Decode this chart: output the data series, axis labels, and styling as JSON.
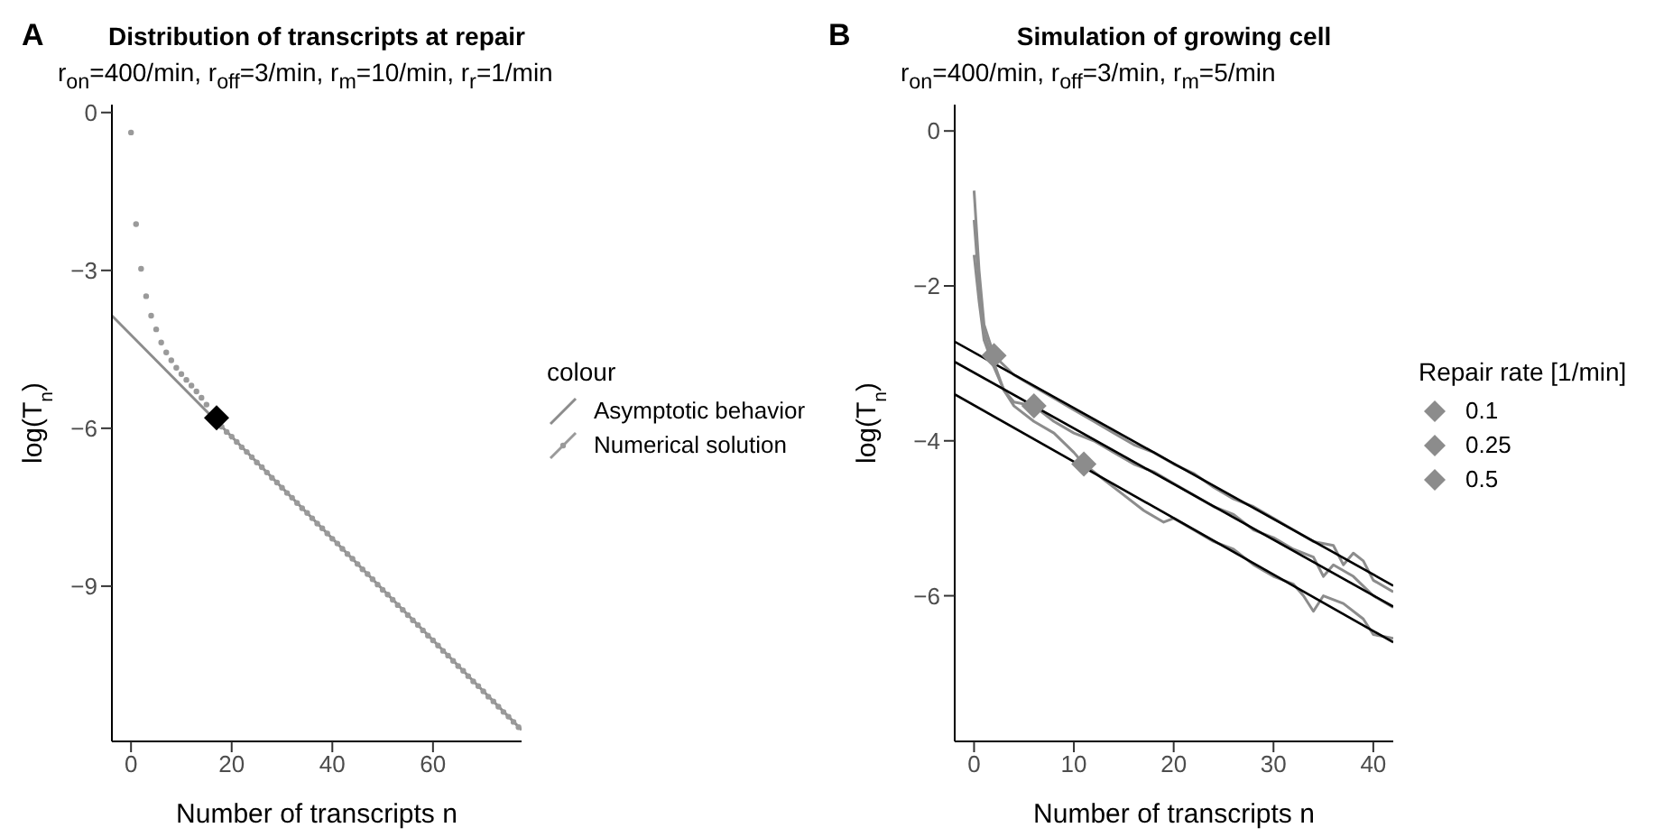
{
  "chart_data": [
    {
      "type": "scatter",
      "title": "Distribution of transcripts at repair",
      "subtitle": "r$_{on}$=400/min,  r$_{off}$=3/min,  r$_{m}$=10/min,  r$_{r}$=1/min",
      "xlabel": "Number of transcripts n",
      "ylabel": "log(T$_{n}$)",
      "legend_title": "colour",
      "legend": "right",
      "annotations": [
        "A"
      ],
      "xlim": [
        -3.8,
        77.6
      ],
      "xticks": [
        0,
        20,
        40,
        60
      ],
      "ylim": [
        -11.95,
        0.15
      ],
      "yticks": [
        0,
        -3,
        -6,
        -9
      ],
      "series": [
        {
          "name": "Asymptotic behavior",
          "type": "line",
          "color": "#8c8c8c",
          "x": [
            -3.8,
            77.6
          ],
          "values": [
            -3.86,
            -11.73
          ]
        },
        {
          "name": "Numerical solution",
          "marker": "circle",
          "color": "#9a9a9a",
          "x": [
            0,
            1,
            2,
            3,
            4,
            5,
            6,
            7,
            8,
            9,
            10,
            11,
            12,
            13,
            14,
            15,
            16,
            17,
            18,
            19,
            20,
            21,
            22,
            23,
            24,
            25,
            26,
            27,
            28,
            29,
            30,
            31,
            32,
            33,
            34,
            35,
            36,
            37,
            38,
            39,
            40,
            41,
            42,
            43,
            44,
            45,
            46,
            47,
            48,
            49,
            50,
            51,
            52,
            53,
            54,
            55,
            56,
            57,
            58,
            59,
            60,
            61,
            62,
            63,
            64,
            65,
            66,
            67,
            68,
            69,
            70,
            71,
            72,
            73,
            74,
            75,
            76,
            77
          ],
          "values": [
            -0.38,
            -2.12,
            -2.97,
            -3.49,
            -3.86,
            -4.12,
            -4.37,
            -4.56,
            -4.71,
            -4.85,
            -4.97,
            -5.08,
            -5.19,
            -5.3,
            -5.42,
            -5.55,
            null,
            null,
            -5.97,
            -6.07,
            -6.16,
            -6.26,
            -6.36,
            -6.45,
            -6.55,
            -6.65,
            -6.74,
            -6.84,
            -6.94,
            -7.03,
            -7.13,
            -7.23,
            -7.32,
            -7.42,
            -7.52,
            -7.61,
            -7.71,
            -7.81,
            -7.9,
            -8.0,
            -8.1,
            -8.19,
            -8.29,
            -8.39,
            -8.48,
            -8.58,
            -8.68,
            -8.77,
            -8.87,
            -8.97,
            -9.07,
            -9.16,
            -9.26,
            -9.36,
            -9.45,
            -9.55,
            -9.65,
            -9.74,
            -9.84,
            -9.94,
            -10.03,
            -10.13,
            -10.23,
            -10.32,
            -10.42,
            -10.52,
            -10.61,
            -10.71,
            -10.81,
            -10.9,
            -11.0,
            -11.1,
            -11.19,
            -11.29,
            -11.39,
            -11.48,
            -11.58,
            -11.68
          ]
        },
        {
          "marker": "diamond",
          "color": "#000000",
          "x": [
            17
          ],
          "values": [
            -5.8
          ]
        }
      ]
    },
    {
      "type": "line",
      "title": "Simulation of growing cell",
      "subtitle": "r$_{on}$=400/min,  r$_{off}$=3/min,  r$_{m}$=5/min",
      "xlabel": "Number of transcripts n",
      "ylabel": "log(T$_{n}$)",
      "legend_title": "Repair rate [1/min]",
      "legend": "right",
      "annotations": [
        "B"
      ],
      "xlim": [
        -1.94,
        42
      ],
      "xticks": [
        0,
        10,
        20,
        30,
        40
      ],
      "ylim": [
        -7.88,
        0.34
      ],
      "yticks": [
        0,
        -2,
        -4,
        -6
      ],
      "series": [
        {
          "color": "#8c8c8c",
          "x": [
            0,
            0.5,
            1,
            2,
            4,
            6,
            8,
            10,
            12,
            14,
            16,
            18,
            20,
            22,
            24,
            26,
            28,
            30,
            32,
            34,
            36,
            37,
            38,
            39,
            40,
            42
          ],
          "values": [
            -0.77,
            -1.8,
            -2.5,
            -2.9,
            -3.15,
            -3.3,
            -3.45,
            -3.6,
            -3.75,
            -3.9,
            -4.05,
            -4.15,
            -4.3,
            -4.42,
            -4.6,
            -4.75,
            -4.85,
            -5.0,
            -5.15,
            -5.3,
            -5.35,
            -5.6,
            -5.45,
            -5.55,
            -5.8,
            -5.95
          ]
        },
        {
          "color": "#8c8c8c",
          "x": [
            0,
            0.5,
            1,
            2,
            3,
            4,
            6,
            8,
            10,
            12,
            14,
            16,
            18,
            20,
            22,
            24,
            26,
            28,
            30,
            32,
            34,
            35,
            36,
            38,
            40,
            42
          ],
          "values": [
            -1.15,
            -2.0,
            -2.6,
            -3.0,
            -3.35,
            -3.5,
            -3.55,
            -3.75,
            -3.9,
            -4.0,
            -4.15,
            -4.3,
            -4.4,
            -4.55,
            -4.7,
            -4.85,
            -4.95,
            -5.15,
            -5.25,
            -5.4,
            -5.5,
            -5.75,
            -5.6,
            -5.75,
            -6.0,
            -6.15
          ]
        },
        {
          "color": "#8c8c8c",
          "x": [
            0,
            0.5,
            1,
            2,
            3,
            4,
            6,
            8,
            10,
            11,
            13,
            15,
            17,
            19,
            20,
            22,
            24,
            26,
            28,
            30,
            32,
            33,
            34,
            35,
            37,
            39,
            40,
            42
          ],
          "values": [
            -1.6,
            -2.2,
            -2.7,
            -3.05,
            -3.35,
            -3.55,
            -3.75,
            -3.9,
            -4.15,
            -4.3,
            -4.5,
            -4.7,
            -4.9,
            -5.05,
            -5.0,
            -5.15,
            -5.3,
            -5.4,
            -5.6,
            -5.75,
            -5.85,
            -6.0,
            -6.2,
            -6.0,
            -6.1,
            -6.3,
            -6.5,
            -6.55
          ]
        },
        {
          "color": "#000000",
          "x": [
            -1.94,
            42
          ],
          "values": [
            -2.72,
            -5.87
          ]
        },
        {
          "color": "#000000",
          "x": [
            -1.94,
            42
          ],
          "values": [
            -2.98,
            -6.14
          ]
        },
        {
          "color": "#000000",
          "x": [
            -1.94,
            42
          ],
          "values": [
            -3.4,
            -6.6
          ]
        },
        {
          "name": "0.1",
          "type": "scatter",
          "marker": "diamond",
          "color": "#8c8c8c",
          "x": [
            11
          ],
          "values": [
            -4.3
          ]
        },
        {
          "name": "0.25",
          "type": "scatter",
          "marker": "diamond",
          "color": "#8c8c8c",
          "x": [
            6
          ],
          "values": [
            -3.55
          ]
        },
        {
          "name": "0.5",
          "type": "scatter",
          "marker": "diamond",
          "color": "#8c8c8c",
          "x": [
            2
          ],
          "values": [
            -2.9
          ]
        }
      ]
    }
  ]
}
